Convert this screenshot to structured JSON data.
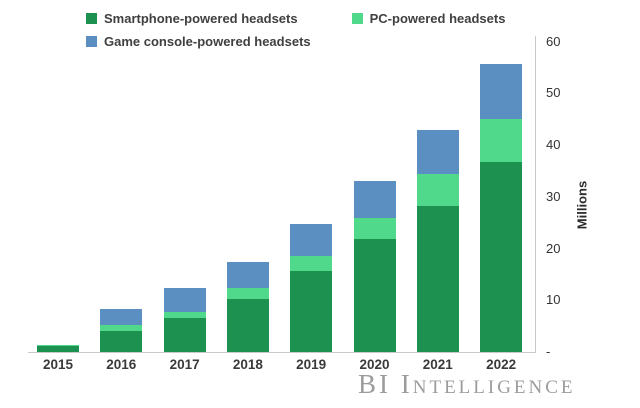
{
  "watermark": "BI Intelligence",
  "colors": {
    "smartphone": "#1d9150",
    "pc": "#50d98a",
    "console": "#5b8fc2",
    "axis_line": "#c9c9c9",
    "watermark_text": "#9c9c9c"
  },
  "chart_data": {
    "type": "bar",
    "stacked": true,
    "title": "",
    "xlabel": "",
    "ylabel": "Millions",
    "ylim": [
      0,
      60
    ],
    "grid": false,
    "axis_side": "right",
    "legend_position": "top-left",
    "categories": [
      "2015",
      "2016",
      "2017",
      "2018",
      "2019",
      "2020",
      "2021",
      "2022"
    ],
    "series": [
      {
        "name": "Smartphone-powered headsets",
        "color": "#1d9150",
        "values": [
          1.2,
          4.0,
          6.6,
          10.2,
          15.7,
          21.8,
          28.2,
          36.7
        ]
      },
      {
        "name": "PC-powered headsets",
        "color": "#50d98a",
        "values": [
          0.1,
          1.3,
          1.2,
          2.2,
          2.9,
          4.1,
          6.2,
          8.3
        ]
      },
      {
        "name": "Game console-powered headsets",
        "color": "#5b8fc2",
        "values": [
          0.1,
          3.0,
          4.5,
          5.1,
          6.1,
          7.2,
          8.5,
          10.7
        ]
      }
    ],
    "yticks": [
      {
        "value": 0,
        "label": "-"
      },
      {
        "value": 10,
        "label": "10"
      },
      {
        "value": 20,
        "label": "20"
      },
      {
        "value": 30,
        "label": "30"
      },
      {
        "value": 40,
        "label": "40"
      },
      {
        "value": 50,
        "label": "50"
      },
      {
        "value": 60,
        "label": "60"
      }
    ]
  }
}
